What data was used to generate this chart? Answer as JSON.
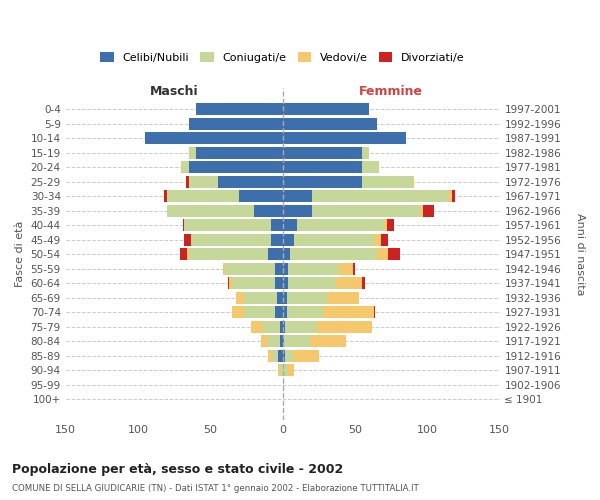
{
  "age_groups": [
    "100+",
    "95-99",
    "90-94",
    "85-89",
    "80-84",
    "75-79",
    "70-74",
    "65-69",
    "60-64",
    "55-59",
    "50-54",
    "45-49",
    "40-44",
    "35-39",
    "30-34",
    "25-29",
    "20-24",
    "15-19",
    "10-14",
    "5-9",
    "0-4"
  ],
  "birth_years": [
    "≤ 1901",
    "1902-1906",
    "1907-1911",
    "1912-1916",
    "1917-1921",
    "1922-1926",
    "1927-1931",
    "1932-1936",
    "1937-1941",
    "1942-1946",
    "1947-1951",
    "1952-1956",
    "1957-1961",
    "1962-1966",
    "1967-1971",
    "1972-1976",
    "1977-1981",
    "1982-1986",
    "1987-1991",
    "1992-1996",
    "1997-2001"
  ],
  "males": {
    "celibi": [
      0,
      0,
      0,
      3,
      2,
      2,
      5,
      4,
      5,
      5,
      10,
      8,
      8,
      20,
      30,
      45,
      65,
      60,
      95,
      65,
      60
    ],
    "coniugati": [
      0,
      0,
      2,
      4,
      8,
      12,
      22,
      23,
      30,
      35,
      55,
      55,
      60,
      60,
      50,
      20,
      5,
      5,
      0,
      0,
      0
    ],
    "vedovi": [
      0,
      0,
      1,
      3,
      5,
      8,
      8,
      5,
      2,
      1,
      1,
      0,
      0,
      0,
      0,
      0,
      0,
      0,
      0,
      0,
      0
    ],
    "divorziati": [
      0,
      0,
      0,
      0,
      0,
      0,
      0,
      0,
      1,
      0,
      5,
      5,
      1,
      0,
      2,
      2,
      0,
      0,
      0,
      0,
      0
    ]
  },
  "females": {
    "nubili": [
      0,
      0,
      0,
      2,
      1,
      2,
      3,
      3,
      4,
      4,
      5,
      8,
      10,
      20,
      20,
      55,
      55,
      55,
      85,
      65,
      60
    ],
    "coniugate": [
      0,
      0,
      3,
      5,
      18,
      22,
      25,
      28,
      33,
      35,
      60,
      55,
      60,
      75,
      95,
      35,
      12,
      5,
      0,
      0,
      0
    ],
    "vedove": [
      0,
      1,
      5,
      18,
      25,
      38,
      35,
      22,
      18,
      10,
      8,
      5,
      2,
      2,
      2,
      1,
      0,
      0,
      0,
      0,
      0
    ],
    "divorziate": [
      0,
      0,
      0,
      0,
      0,
      0,
      1,
      0,
      2,
      1,
      8,
      5,
      5,
      8,
      2,
      0,
      0,
      0,
      0,
      0,
      0
    ]
  },
  "colors": {
    "celibi": "#3d6fad",
    "coniugati": "#c5d89a",
    "vedovi": "#f5c86e",
    "divorziati": "#cc2222"
  },
  "legend_labels": [
    "Celibi/Nubili",
    "Coniugati/e",
    "Vedovi/e",
    "Divorziati/e"
  ],
  "title": "Popolazione per età, sesso e stato civile - 2002",
  "subtitle": "COMUNE DI SELLA GIUDICARIE (TN) - Dati ISTAT 1° gennaio 2002 - Elaborazione TUTTITALIA.IT",
  "xlabel_left": "Maschi",
  "xlabel_right": "Femmine",
  "ylabel_left": "Fasce di età",
  "ylabel_right": "Anni di nascita",
  "xlim": 150,
  "bg_color": "#ffffff",
  "grid_color": "#cccccc"
}
